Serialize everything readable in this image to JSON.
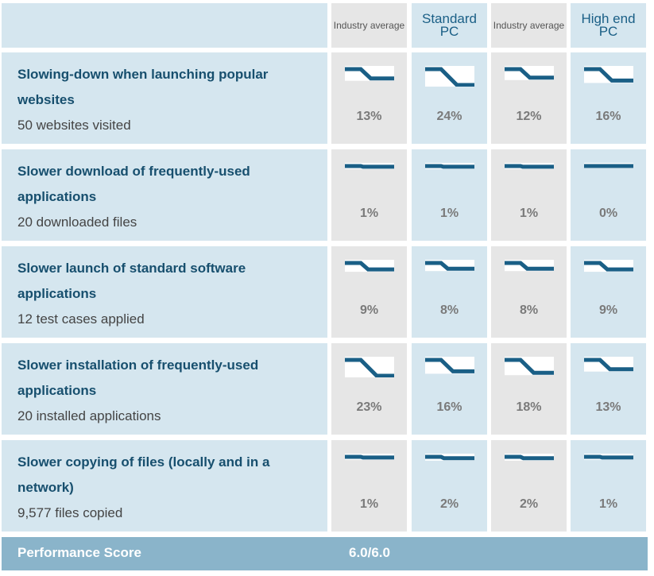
{
  "columns": [
    {
      "label": "Industry average",
      "style": "small",
      "shade": "gray"
    },
    {
      "label": "Standard PC",
      "style": "big",
      "shade": "blue"
    },
    {
      "label": "Industry average",
      "style": "small",
      "shade": "gray"
    },
    {
      "label": "High end PC",
      "style": "big",
      "shade": "blue"
    }
  ],
  "rows": [
    {
      "title": "Slowing-down when launching popular websites",
      "subtitle": "50 websites visited",
      "values": [
        "13%",
        "24%",
        "12%",
        "16%"
      ],
      "levels": [
        13,
        24,
        12,
        16
      ]
    },
    {
      "title": "Slower download of frequently-used applications",
      "subtitle": "20 downloaded files",
      "values": [
        "1%",
        "1%",
        "1%",
        "0%"
      ],
      "levels": [
        1,
        1,
        1,
        0
      ]
    },
    {
      "title": "Slower launch of standard software applications",
      "subtitle": "12 test cases applied",
      "values": [
        "9%",
        "8%",
        "8%",
        "9%"
      ],
      "levels": [
        9,
        8,
        8,
        9
      ]
    },
    {
      "title": "Slower installation of frequently-used applications",
      "subtitle": "20 installed applications",
      "values": [
        "23%",
        "16%",
        "18%",
        "13%"
      ],
      "levels": [
        23,
        16,
        18,
        13
      ]
    },
    {
      "title": "Slower copying of files (locally and in a network)",
      "subtitle": "9,577 files copied",
      "values": [
        "1%",
        "2%",
        "2%",
        "1%"
      ],
      "levels": [
        1,
        2,
        2,
        1
      ]
    }
  ],
  "score": {
    "label": "Performance Score",
    "value": "6.0/6.0"
  },
  "colors": {
    "accent": "#1a5f86",
    "header_blue": "#d5e6ef",
    "header_gray": "#e6e6e6",
    "score_bar": "#8ab4ca"
  }
}
